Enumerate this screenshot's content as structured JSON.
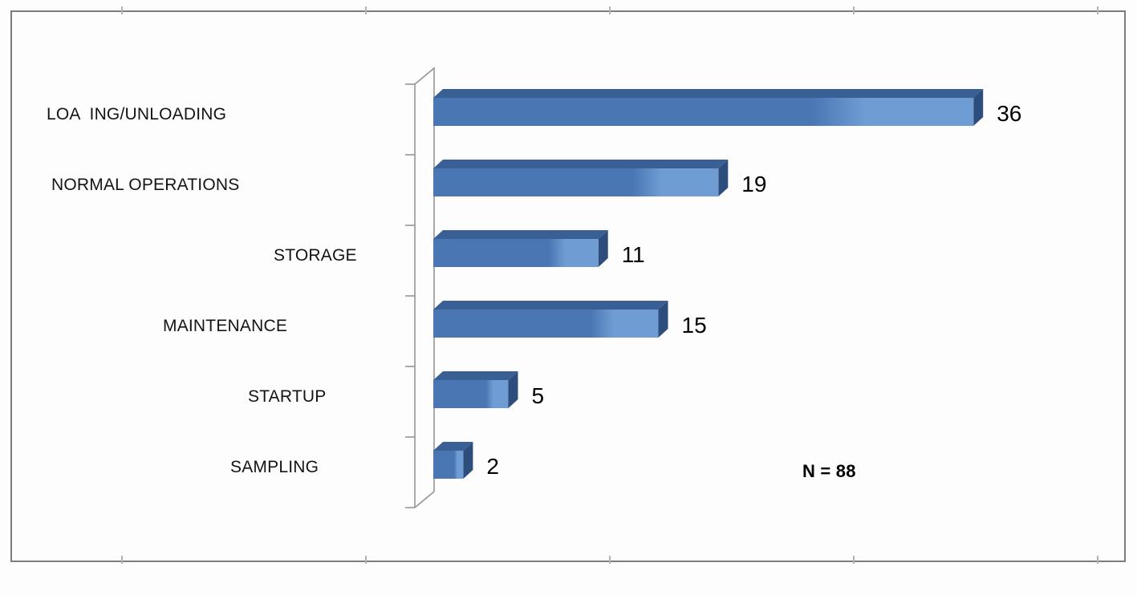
{
  "chart_data": {
    "type": "bar",
    "orientation": "horizontal",
    "style": "3d",
    "title": "",
    "xlabel": "",
    "ylabel": "",
    "categories": [
      "LOA  ING/UNLOADING",
      "NORMAL OPERATIONS",
      "STORAGE",
      "MAINTENANCE",
      "STARTUP",
      "SAMPLING"
    ],
    "values": [
      36,
      19,
      11,
      15,
      5,
      2
    ],
    "annotation": "N = 88",
    "xlim": [
      0,
      36
    ],
    "legend": false,
    "grid": false,
    "colors": {
      "bar_front": "#4a77b4",
      "bar_highlight": "#6f9cd2",
      "bar_top": "#3a5f94",
      "bar_end": "#2d4d7c",
      "axis_line": "#959595",
      "frame_border": "#7c7c7c",
      "category_text": "#141414",
      "value_text": "#000000"
    }
  }
}
